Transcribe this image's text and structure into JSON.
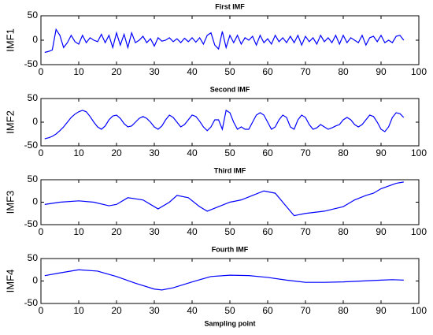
{
  "chart_data": [
    {
      "type": "line",
      "title": "First IMF",
      "ylabel": "IMF1",
      "color": "#0000ff",
      "x": [
        1,
        2,
        3,
        4,
        5,
        6,
        7,
        8,
        9,
        10,
        11,
        12,
        13,
        14,
        15,
        16,
        17,
        18,
        19,
        20,
        21,
        22,
        23,
        24,
        25,
        26,
        27,
        28,
        29,
        30,
        31,
        32,
        33,
        34,
        35,
        36,
        37,
        38,
        39,
        40,
        41,
        42,
        43,
        44,
        45,
        46,
        47,
        48,
        49,
        50,
        51,
        52,
        53,
        54,
        55,
        56,
        57,
        58,
        59,
        60,
        61,
        62,
        63,
        64,
        65,
        66,
        67,
        68,
        69,
        70,
        71,
        72,
        73,
        74,
        75,
        76,
        77,
        78,
        79,
        80,
        81,
        82,
        83,
        84,
        85,
        86,
        87,
        88,
        89,
        90,
        91,
        92,
        93,
        94,
        95,
        96
      ],
      "values": [
        -25,
        -23,
        -20,
        22,
        10,
        -15,
        -5,
        10,
        -3,
        -8,
        10,
        -5,
        5,
        0,
        -3,
        12,
        -5,
        10,
        -15,
        15,
        -10,
        12,
        -15,
        15,
        -5,
        0,
        8,
        -5,
        3,
        -12,
        5,
        -2,
        0,
        5,
        -3,
        3,
        -5,
        4,
        -3,
        5,
        -4,
        5,
        -8,
        10,
        15,
        -10,
        -18,
        18,
        -15,
        10,
        -5,
        10,
        -8,
        5,
        0,
        8,
        -10,
        10,
        -5,
        3,
        -8,
        10,
        -3,
        5,
        -5,
        8,
        -5,
        10,
        -10,
        8,
        -3,
        5,
        -8,
        10,
        -3,
        5,
        -5,
        10,
        -8,
        10,
        -5,
        5,
        0,
        -5,
        10,
        -10,
        5,
        8,
        -3,
        10,
        -5,
        0,
        -5,
        8,
        10,
        0
      ],
      "xlim": [
        0,
        100
      ],
      "xticks": [
        0,
        10,
        20,
        30,
        40,
        50,
        60,
        70,
        80,
        90,
        100
      ],
      "ylim": [
        -50,
        50
      ],
      "yticks": [
        -50,
        0,
        50
      ]
    },
    {
      "type": "line",
      "title": "Second IMF",
      "ylabel": "IMF2",
      "color": "#0000ff",
      "x": [
        1,
        2,
        3,
        4,
        5,
        6,
        7,
        8,
        9,
        10,
        11,
        12,
        13,
        14,
        15,
        16,
        17,
        18,
        19,
        20,
        21,
        22,
        23,
        24,
        25,
        26,
        27,
        28,
        29,
        30,
        31,
        32,
        33,
        34,
        35,
        36,
        37,
        38,
        39,
        40,
        41,
        42,
        43,
        44,
        45,
        46,
        47,
        48,
        49,
        50,
        51,
        52,
        53,
        54,
        55,
        56,
        57,
        58,
        59,
        60,
        61,
        62,
        63,
        64,
        65,
        66,
        67,
        68,
        69,
        70,
        71,
        72,
        73,
        74,
        75,
        76,
        77,
        78,
        79,
        80,
        81,
        82,
        83,
        84,
        85,
        86,
        87,
        88,
        89,
        90,
        91,
        92,
        93,
        94,
        95,
        96
      ],
      "values": [
        -35,
        -33,
        -30,
        -25,
        -18,
        -10,
        0,
        10,
        17,
        22,
        25,
        22,
        12,
        0,
        -10,
        -15,
        -8,
        5,
        13,
        15,
        8,
        -3,
        -10,
        -8,
        0,
        8,
        12,
        8,
        0,
        -10,
        -15,
        -8,
        5,
        15,
        10,
        0,
        -10,
        -5,
        5,
        15,
        12,
        2,
        -10,
        -18,
        -10,
        5,
        5,
        -15,
        25,
        20,
        0,
        -15,
        -10,
        -15,
        -15,
        0,
        15,
        20,
        15,
        0,
        -15,
        -10,
        5,
        15,
        10,
        -10,
        -15,
        5,
        15,
        10,
        -5,
        -15,
        -12,
        -5,
        -10,
        -15,
        -12,
        -8,
        -5,
        5,
        10,
        5,
        -5,
        -10,
        -5,
        5,
        15,
        12,
        0,
        -15,
        -20,
        -10,
        10,
        20,
        18,
        10
      ],
      "xlim": [
        0,
        100
      ],
      "xticks": [
        0,
        10,
        20,
        30,
        40,
        50,
        60,
        70,
        80,
        90,
        100
      ],
      "ylim": [
        -50,
        50
      ],
      "yticks": [
        -50,
        0,
        50
      ]
    },
    {
      "type": "line",
      "title": "Third IMF",
      "ylabel": "IMF3",
      "color": "#0000ff",
      "x": [
        1,
        5,
        10,
        14,
        18,
        20,
        23,
        27,
        30,
        31,
        34,
        36,
        39,
        42,
        44,
        47,
        50,
        53,
        56,
        59,
        62,
        65,
        67,
        70,
        75,
        80,
        83,
        86,
        88,
        90,
        94,
        96
      ],
      "values": [
        -5,
        0,
        3,
        0,
        -8,
        -5,
        10,
        5,
        -10,
        -15,
        0,
        15,
        10,
        -10,
        -20,
        -10,
        0,
        5,
        15,
        25,
        20,
        -10,
        -30,
        -25,
        -20,
        -10,
        5,
        15,
        20,
        30,
        42,
        45
      ],
      "xlim": [
        0,
        100
      ],
      "xticks": [
        0,
        10,
        20,
        30,
        40,
        50,
        60,
        70,
        80,
        90,
        100
      ],
      "ylim": [
        -50,
        50
      ],
      "yticks": [
        -50,
        0,
        50
      ]
    },
    {
      "type": "line",
      "title": "Fourth IMF",
      "ylabel": "IMF4",
      "xlabel": "Sampling point",
      "color": "#0000ff",
      "x": [
        1,
        5,
        10,
        15,
        20,
        25,
        30,
        32,
        35,
        40,
        45,
        50,
        55,
        60,
        65,
        70,
        75,
        80,
        85,
        90,
        93,
        96
      ],
      "values": [
        12,
        18,
        25,
        22,
        10,
        -5,
        -18,
        -20,
        -15,
        -2,
        10,
        13,
        12,
        8,
        2,
        -3,
        -3,
        -2,
        0,
        2,
        3,
        2
      ],
      "xlim": [
        0,
        100
      ],
      "xticks": [
        0,
        10,
        20,
        30,
        40,
        50,
        60,
        70,
        80,
        90,
        100
      ],
      "ylim": [
        -50,
        50
      ],
      "yticks": [
        -50,
        0,
        50
      ]
    }
  ]
}
